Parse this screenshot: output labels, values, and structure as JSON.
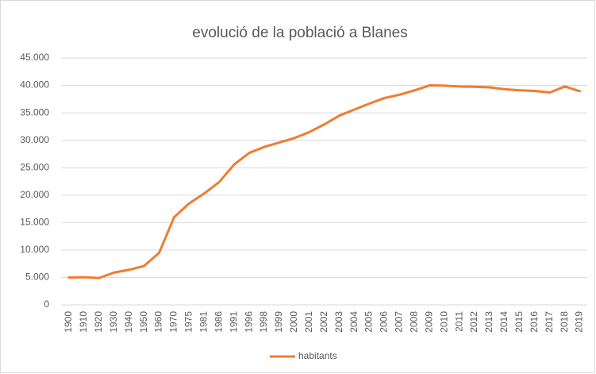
{
  "chart_data": {
    "type": "line",
    "title": "evolució de la població a Blanes",
    "categories": [
      "1900",
      "1910",
      "1920",
      "1930",
      "1940",
      "1950",
      "1960",
      "1970",
      "1975",
      "1981",
      "1986",
      "1991",
      "1996",
      "1998",
      "1999",
      "2000",
      "2001",
      "2002",
      "2003",
      "2004",
      "2005",
      "2006",
      "2007",
      "2008",
      "2009",
      "2010",
      "2011",
      "2012",
      "2013",
      "2014",
      "2015",
      "2016",
      "2017",
      "2018",
      "2019"
    ],
    "series": [
      {
        "name": "habitants",
        "color": "#ed7d31",
        "values": [
          5000,
          5050,
          4900,
          5900,
          6400,
          7100,
          9500,
          16000,
          18500,
          20300,
          22400,
          25600,
          27700,
          28800,
          29600,
          30400,
          31500,
          32900,
          34500,
          35600,
          36700,
          37700,
          38300,
          39100,
          40000,
          39950,
          39800,
          39750,
          39650,
          39300,
          39100,
          39000,
          38700,
          39800,
          38950
        ]
      }
    ],
    "ylim": [
      0,
      45000
    ],
    "yticks": [
      0,
      {
        "value": 5000,
        "label": "5.000"
      },
      {
        "value": 10000,
        "label": "10.000"
      },
      {
        "value": 15000,
        "label": "15.000"
      },
      {
        "value": 20000,
        "label": "20.000"
      },
      {
        "value": 25000,
        "label": "25.000"
      },
      {
        "value": 30000,
        "label": "30.000"
      },
      {
        "value": 35000,
        "label": "35.000"
      },
      {
        "value": 40000,
        "label": "40.000"
      },
      {
        "value": 45000,
        "label": "45.000"
      }
    ],
    "grid": true,
    "legend": "bottom"
  }
}
